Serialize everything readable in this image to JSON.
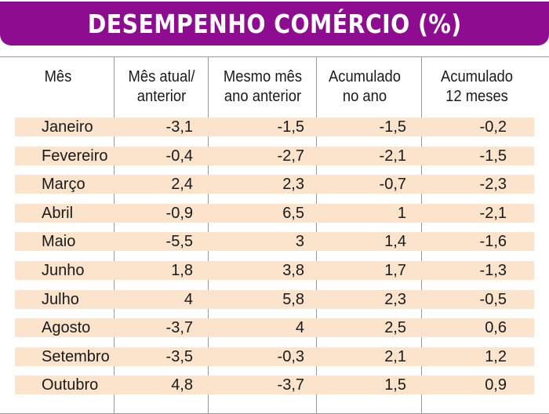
{
  "title": "DESEMPENHO COMÉRCIO (%)",
  "colors": {
    "title_bg": "#8e0c8f",
    "row_bg": "#fbe3cc",
    "grid": "#9a9a9a"
  },
  "chart_data": {
    "type": "table",
    "title": "DESEMPENHO COMÉRCIO (%)",
    "columns": [
      {
        "line1": "Mês",
        "line2": ""
      },
      {
        "line1": "Mês atual/",
        "line2": "anterior"
      },
      {
        "line1": "Mesmo mês",
        "line2": "ano anterior"
      },
      {
        "line1": "Acumulado",
        "line2": "no ano"
      },
      {
        "line1": "Acumulado",
        "line2": "12 meses"
      }
    ],
    "rows": [
      [
        "Janeiro",
        "-3,1",
        "-1,5",
        "-1,5",
        "-0,2"
      ],
      [
        "Fevereiro",
        "-0,4",
        "-2,7",
        "-2,1",
        "-1,5"
      ],
      [
        "Março",
        "2,4",
        "2,3",
        "-0,7",
        "-2,3"
      ],
      [
        "Abril",
        "-0,9",
        "6,5",
        "1",
        "-2,1"
      ],
      [
        "Maio",
        "-5,5",
        "3",
        "1,4",
        "-1,6"
      ],
      [
        "Junho",
        "1,8",
        "3,8",
        "1,7",
        "-1,3"
      ],
      [
        "Julho",
        "4",
        "5,8",
        "2,3",
        "-0,5"
      ],
      [
        "Agosto",
        "-3,7",
        "4",
        "2,5",
        "0,6"
      ],
      [
        "Setembro",
        "-3,5",
        "-0,3",
        "2,1",
        "1,2"
      ],
      [
        "Outubro",
        "4,8",
        "-3,7",
        "1,5",
        "0,9"
      ]
    ]
  }
}
